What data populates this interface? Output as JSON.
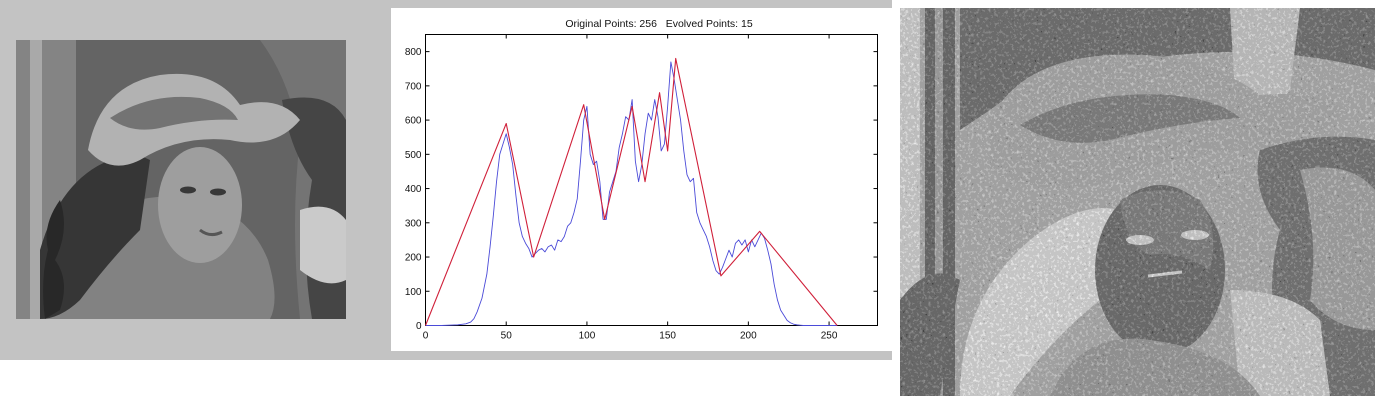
{
  "chart_data": {
    "type": "line",
    "title": "Original Points: 256   Evolved Points: 15",
    "xlabel": "",
    "ylabel": "",
    "xlim": [
      0,
      280
    ],
    "ylim": [
      0,
      850
    ],
    "x_ticks": [
      0,
      50,
      100,
      150,
      200,
      250
    ],
    "y_ticks": [
      0,
      100,
      200,
      300,
      400,
      500,
      600,
      700,
      800
    ],
    "grid": false,
    "series": [
      {
        "color": "#4b4bd8",
        "x": [
          0,
          10,
          20,
          25,
          28,
          30,
          32,
          35,
          38,
          40,
          42,
          44,
          46,
          48,
          50,
          52,
          54,
          56,
          58,
          60,
          62,
          64,
          66,
          68,
          70,
          72,
          74,
          76,
          78,
          80,
          82,
          84,
          86,
          88,
          90,
          92,
          94,
          96,
          98,
          100,
          102,
          104,
          106,
          108,
          110,
          112,
          114,
          116,
          118,
          120,
          122,
          124,
          126,
          128,
          130,
          132,
          134,
          136,
          138,
          140,
          142,
          144,
          146,
          148,
          150,
          152,
          154,
          156,
          158,
          160,
          162,
          164,
          166,
          168,
          170,
          172,
          174,
          176,
          178,
          180,
          182,
          184,
          186,
          188,
          190,
          192,
          194,
          196,
          198,
          200,
          202,
          204,
          206,
          208,
          210,
          212,
          214,
          216,
          218,
          220,
          222,
          224,
          226,
          228,
          230,
          232,
          234,
          236,
          240,
          250,
          255
        ],
        "y": [
          0,
          0,
          2,
          5,
          10,
          20,
          40,
          80,
          150,
          230,
          320,
          420,
          500,
          530,
          560,
          520,
          470,
          380,
          300,
          260,
          240,
          225,
          200,
          210,
          220,
          225,
          215,
          230,
          235,
          220,
          250,
          245,
          260,
          290,
          300,
          330,
          370,
          480,
          600,
          640,
          500,
          470,
          480,
          420,
          310,
          310,
          390,
          420,
          450,
          520,
          560,
          610,
          600,
          660,
          480,
          420,
          470,
          560,
          620,
          600,
          660,
          610,
          510,
          530,
          640,
          770,
          720,
          660,
          600,
          510,
          440,
          420,
          430,
          330,
          300,
          280,
          260,
          230,
          190,
          160,
          150,
          170,
          195,
          220,
          200,
          240,
          250,
          235,
          250,
          215,
          250,
          230,
          250,
          270,
          255,
          220,
          180,
          120,
          75,
          45,
          30,
          15,
          8,
          4,
          2,
          1,
          0,
          0,
          0,
          0,
          0
        ]
      },
      {
        "color": "#d0203a",
        "x": [
          0,
          50,
          67,
          98,
          111,
          128,
          136,
          145,
          150,
          155,
          183,
          207,
          255
        ],
        "y": [
          0,
          590,
          200,
          645,
          310,
          640,
          420,
          680,
          510,
          780,
          145,
          275,
          0
        ]
      }
    ]
  }
}
